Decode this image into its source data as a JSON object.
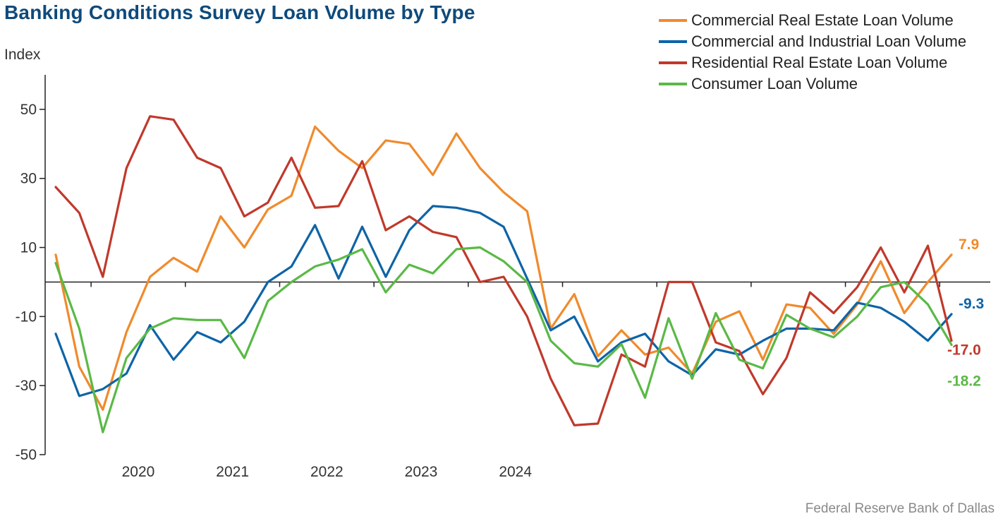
{
  "source": "Federal Reserve Bank of Dallas",
  "chart_data": {
    "type": "line",
    "title": "Banking Conditions Survey Loan Volume by Type",
    "ylabel": "Index",
    "xlabel": "",
    "ylim": [
      -50,
      60
    ],
    "yticks": [
      50,
      30,
      10,
      -10,
      -30,
      -50
    ],
    "ytick_labels": [
      "50",
      "30",
      "10",
      "-10",
      "-30",
      "-50"
    ],
    "xtick_labels": [
      "2020",
      "2021",
      "2022",
      "2023",
      "2024"
    ],
    "x_start": "2019Q3",
    "frequency": "quarterly",
    "grid": false,
    "zero_line": true,
    "legend_position": "top-right",
    "series": [
      {
        "name": "Commercial Real Estate Loan Volume",
        "color": "#f08a2c",
        "end_label": "7.9",
        "values": [
          7.9,
          -24.5,
          -37,
          -14.5,
          1.5,
          7,
          3,
          19,
          10,
          21,
          25,
          45,
          38,
          33,
          41,
          40,
          31,
          43,
          33,
          26,
          20.5,
          -13.5,
          -3.5,
          -21.5,
          -14,
          -21,
          -19,
          -26.5,
          -11.5,
          -8.5,
          -22.5,
          -6.5,
          -7.5,
          -15,
          -6.5,
          6,
          -9,
          0,
          7.9
        ]
      },
      {
        "name": "Commercial and Industrial Loan Volume",
        "color": "#0e64a6",
        "end_label": "-9.3",
        "values": [
          -15,
          -33,
          -31,
          -26.5,
          -12.5,
          -22.5,
          -14.5,
          -17.5,
          -11.5,
          0,
          4.5,
          16.5,
          1,
          16,
          1.5,
          15,
          22,
          21.5,
          20,
          16,
          1,
          -14,
          -10,
          -23,
          -17.5,
          -15,
          -23,
          -27,
          -19.5,
          -21,
          -17,
          -13.5,
          -13.5,
          -14,
          -6,
          -7.5,
          -11.5,
          -17,
          -9.3
        ]
      },
      {
        "name": "Residential Real Estate Loan Volume",
        "color": "#c0392b",
        "end_label": "-17.0",
        "values": [
          27.5,
          20,
          1.5,
          33,
          48,
          47,
          36,
          33,
          19,
          23,
          36,
          21.5,
          22,
          35,
          15,
          19,
          14.5,
          13,
          0,
          1.5,
          -10,
          -28,
          -41.5,
          -41,
          -21,
          -24.5,
          0,
          0,
          -17.5,
          -20,
          -32.5,
          -22,
          -3,
          -9,
          -1.5,
          10,
          -3,
          10.5,
          -17
        ]
      },
      {
        "name": "Consumer Loan Volume",
        "color": "#5ab946",
        "end_label": "-18.2",
        "values": [
          5.5,
          -13.5,
          -43.5,
          -22,
          -13.5,
          -10.5,
          -11,
          -11,
          -22,
          -5.5,
          0,
          4.5,
          6.5,
          9.5,
          -3,
          5,
          2.5,
          9.5,
          10,
          6,
          0,
          -17,
          -23.5,
          -24.5,
          -18,
          -33.5,
          -10.5,
          -28,
          -9,
          -22.5,
          -25,
          -9.5,
          -13.5,
          -16,
          -10,
          -1.5,
          0,
          -6.5,
          -18.2
        ]
      }
    ]
  }
}
